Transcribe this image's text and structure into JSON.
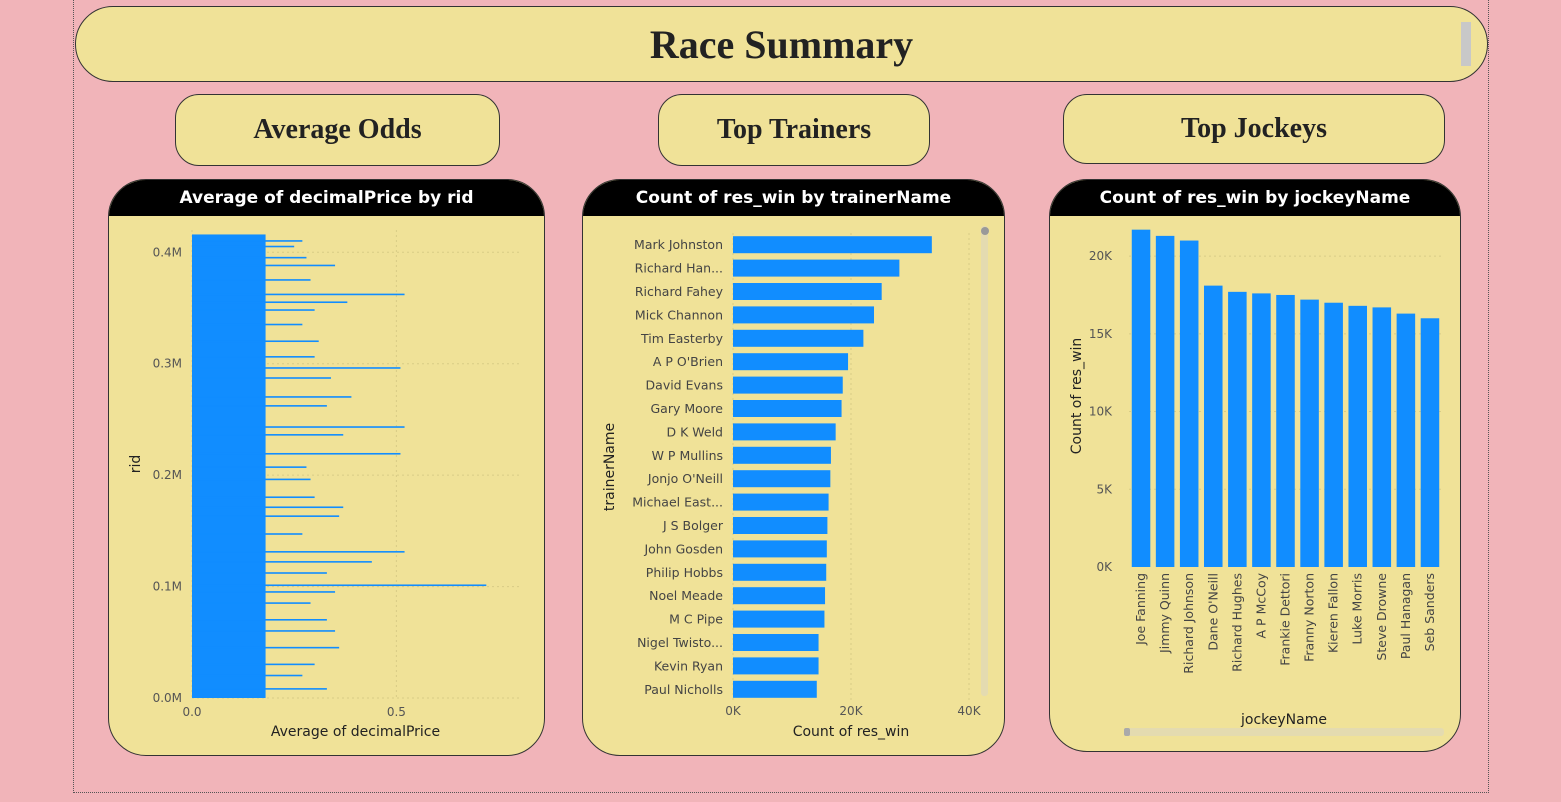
{
  "header": {
    "title": "Race Summary"
  },
  "sections": {
    "odds": "Average Odds",
    "trainers": "Top Trainers",
    "jockeys": "Top Jockeys"
  },
  "colors": {
    "bar": "#118dff",
    "panel": "#f0e298",
    "background": "#f1b4b9"
  },
  "chart_data": [
    {
      "type": "bar",
      "orientation": "horizontal",
      "title": "Average of decimalPrice by rid",
      "xlabel": "Average of decimalPrice",
      "ylabel": "rid",
      "xlim": [
        0,
        0.8
      ],
      "ylim": [
        0,
        420000
      ],
      "x_ticks": [
        "0.0",
        "0.5"
      ],
      "y_ticks": [
        "0.0M",
        "0.1M",
        "0.2M",
        "0.3M",
        "0.4M"
      ],
      "x_tick_values": [
        0,
        0.5
      ],
      "y_tick_values": [
        0,
        100000,
        200000,
        300000,
        400000
      ],
      "rid_max": 416000,
      "baseline": 0.18,
      "spikes": [
        {
          "rid": 410000,
          "value": 0.27
        },
        {
          "rid": 405000,
          "value": 0.25
        },
        {
          "rid": 395000,
          "value": 0.28
        },
        {
          "rid": 388000,
          "value": 0.35
        },
        {
          "rid": 375000,
          "value": 0.29
        },
        {
          "rid": 362000,
          "value": 0.52
        },
        {
          "rid": 355000,
          "value": 0.38
        },
        {
          "rid": 348000,
          "value": 0.3
        },
        {
          "rid": 335000,
          "value": 0.27
        },
        {
          "rid": 320000,
          "value": 0.31
        },
        {
          "rid": 306000,
          "value": 0.3
        },
        {
          "rid": 296000,
          "value": 0.51
        },
        {
          "rid": 287000,
          "value": 0.34
        },
        {
          "rid": 270000,
          "value": 0.39
        },
        {
          "rid": 262000,
          "value": 0.33
        },
        {
          "rid": 243000,
          "value": 0.52
        },
        {
          "rid": 236000,
          "value": 0.37
        },
        {
          "rid": 219000,
          "value": 0.51
        },
        {
          "rid": 207000,
          "value": 0.28
        },
        {
          "rid": 196000,
          "value": 0.29
        },
        {
          "rid": 180000,
          "value": 0.3
        },
        {
          "rid": 171000,
          "value": 0.37
        },
        {
          "rid": 163000,
          "value": 0.36
        },
        {
          "rid": 147000,
          "value": 0.27
        },
        {
          "rid": 131000,
          "value": 0.52
        },
        {
          "rid": 122000,
          "value": 0.44
        },
        {
          "rid": 112000,
          "value": 0.33
        },
        {
          "rid": 101000,
          "value": 0.72
        },
        {
          "rid": 95000,
          "value": 0.35
        },
        {
          "rid": 85000,
          "value": 0.29
        },
        {
          "rid": 70000,
          "value": 0.33
        },
        {
          "rid": 60000,
          "value": 0.35
        },
        {
          "rid": 45000,
          "value": 0.36
        },
        {
          "rid": 30000,
          "value": 0.3
        },
        {
          "rid": 20000,
          "value": 0.27
        },
        {
          "rid": 8000,
          "value": 0.33
        }
      ]
    },
    {
      "type": "bar",
      "orientation": "horizontal",
      "title": "Count of res_win by trainerName",
      "xlabel": "Count of res_win",
      "ylabel": "trainerName",
      "xlim": [
        0,
        40000
      ],
      "x_ticks": [
        "0K",
        "20K",
        "40K"
      ],
      "x_tick_values": [
        0,
        20000,
        40000
      ],
      "categories": [
        "Mark Johnston",
        "Richard Han...",
        "Richard Fahey",
        "Mick Channon",
        "Tim Easterby",
        "A P O'Brien",
        "David Evans",
        "Gary Moore",
        "D K Weld",
        "W P Mullins",
        "Jonjo O'Neill",
        "Michael East...",
        "J S Bolger",
        "John Gosden",
        "Philip Hobbs",
        "Noel Meade",
        "M C Pipe",
        "Nigel Twisto...",
        "Kevin Ryan",
        "Paul Nicholls"
      ],
      "values": [
        33700,
        28200,
        25200,
        23900,
        22100,
        19500,
        18600,
        18400,
        17400,
        16600,
        16500,
        16200,
        16000,
        15900,
        15800,
        15600,
        15500,
        14500,
        14500,
        14200
      ]
    },
    {
      "type": "bar",
      "orientation": "vertical",
      "title": "Count of res_win by jockeyName",
      "xlabel": "jockeyName",
      "ylabel": "Count of res_win",
      "ylim": [
        0,
        22000
      ],
      "y_ticks": [
        "0K",
        "5K",
        "10K",
        "15K",
        "20K"
      ],
      "y_tick_values": [
        0,
        5000,
        10000,
        15000,
        20000
      ],
      "categories": [
        "Joe Fanning",
        "Jimmy Quinn",
        "Richard Johnson",
        "Dane O'Neill",
        "Richard Hughes",
        "A P McCoy",
        "Frankie Dettori",
        "Franny Norton",
        "Kieren Fallon",
        "Luke Morris",
        "Steve Drowne",
        "Paul Hanagan",
        "Seb Sanders"
      ],
      "values": [
        21700,
        21300,
        21000,
        18100,
        17700,
        17600,
        17500,
        17200,
        17000,
        16800,
        16700,
        16300,
        16000
      ]
    }
  ]
}
